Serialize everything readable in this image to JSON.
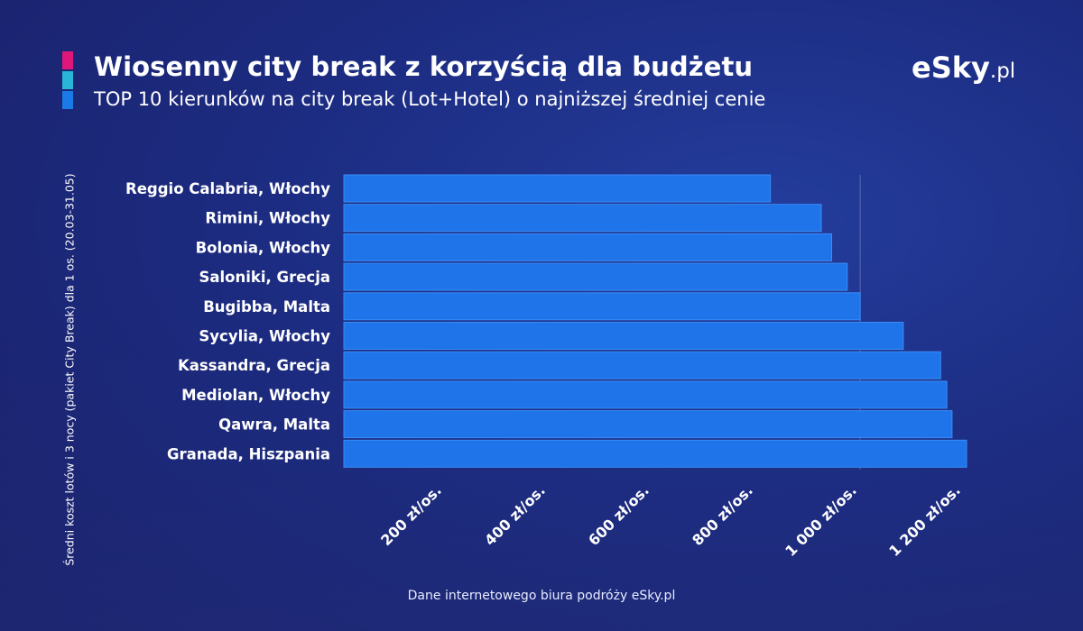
{
  "header": {
    "title": "Wiosenny city break z korzyścią dla budżetu",
    "subtitle": "TOP 10 kierunków na city break (Lot+Hotel) o najniższej średniej cenie",
    "logo_main": "Sky",
    "logo_e": "e",
    "logo_suffix": ".pl"
  },
  "colors": {
    "accent": [
      "#e0177a",
      "#29b5d8",
      "#1a7be8"
    ],
    "bar": "#1f74ea",
    "bar_edge": "#3a8cf5"
  },
  "footer": {
    "source": "Dane internetowego biura podróży eSky.pl"
  },
  "chart_data": {
    "type": "bar",
    "orientation": "horizontal",
    "title": "Wiosenny city break z korzyścią dla budżetu",
    "subtitle": "TOP 10 kierunków na city break (Lot+Hotel) o najniższej średniej cenie",
    "ylabel": "Średni koszt lotów i 3 nocy (pakiet City Break) dla 1 os. (20.03-31.05)",
    "categories": [
      "Reggio Calabria, Włochy",
      "Rimini, Włochy",
      "Bolonia, Włochy",
      "Saloniki, Grecja",
      "Bugibba, Malta",
      "Sycylia, Włochy",
      "Kassandra, Grecja",
      "Mediolan, Włochy",
      "Qawra, Malta",
      "Granada, Hiszpania"
    ],
    "values": [
      822,
      920,
      940,
      970,
      995,
      1078,
      1150,
      1162,
      1172,
      1200
    ],
    "xlim": [
      0,
      1200
    ],
    "xticks": [
      200,
      400,
      600,
      800,
      1000,
      1200
    ],
    "xtick_labels": [
      "200 zł/os.",
      "400 zł/os.",
      "600 zł/os.",
      "800 zł/os.",
      "1 000 zł/os.",
      "1 200 zł/os."
    ],
    "grid": false,
    "legend": "none"
  }
}
